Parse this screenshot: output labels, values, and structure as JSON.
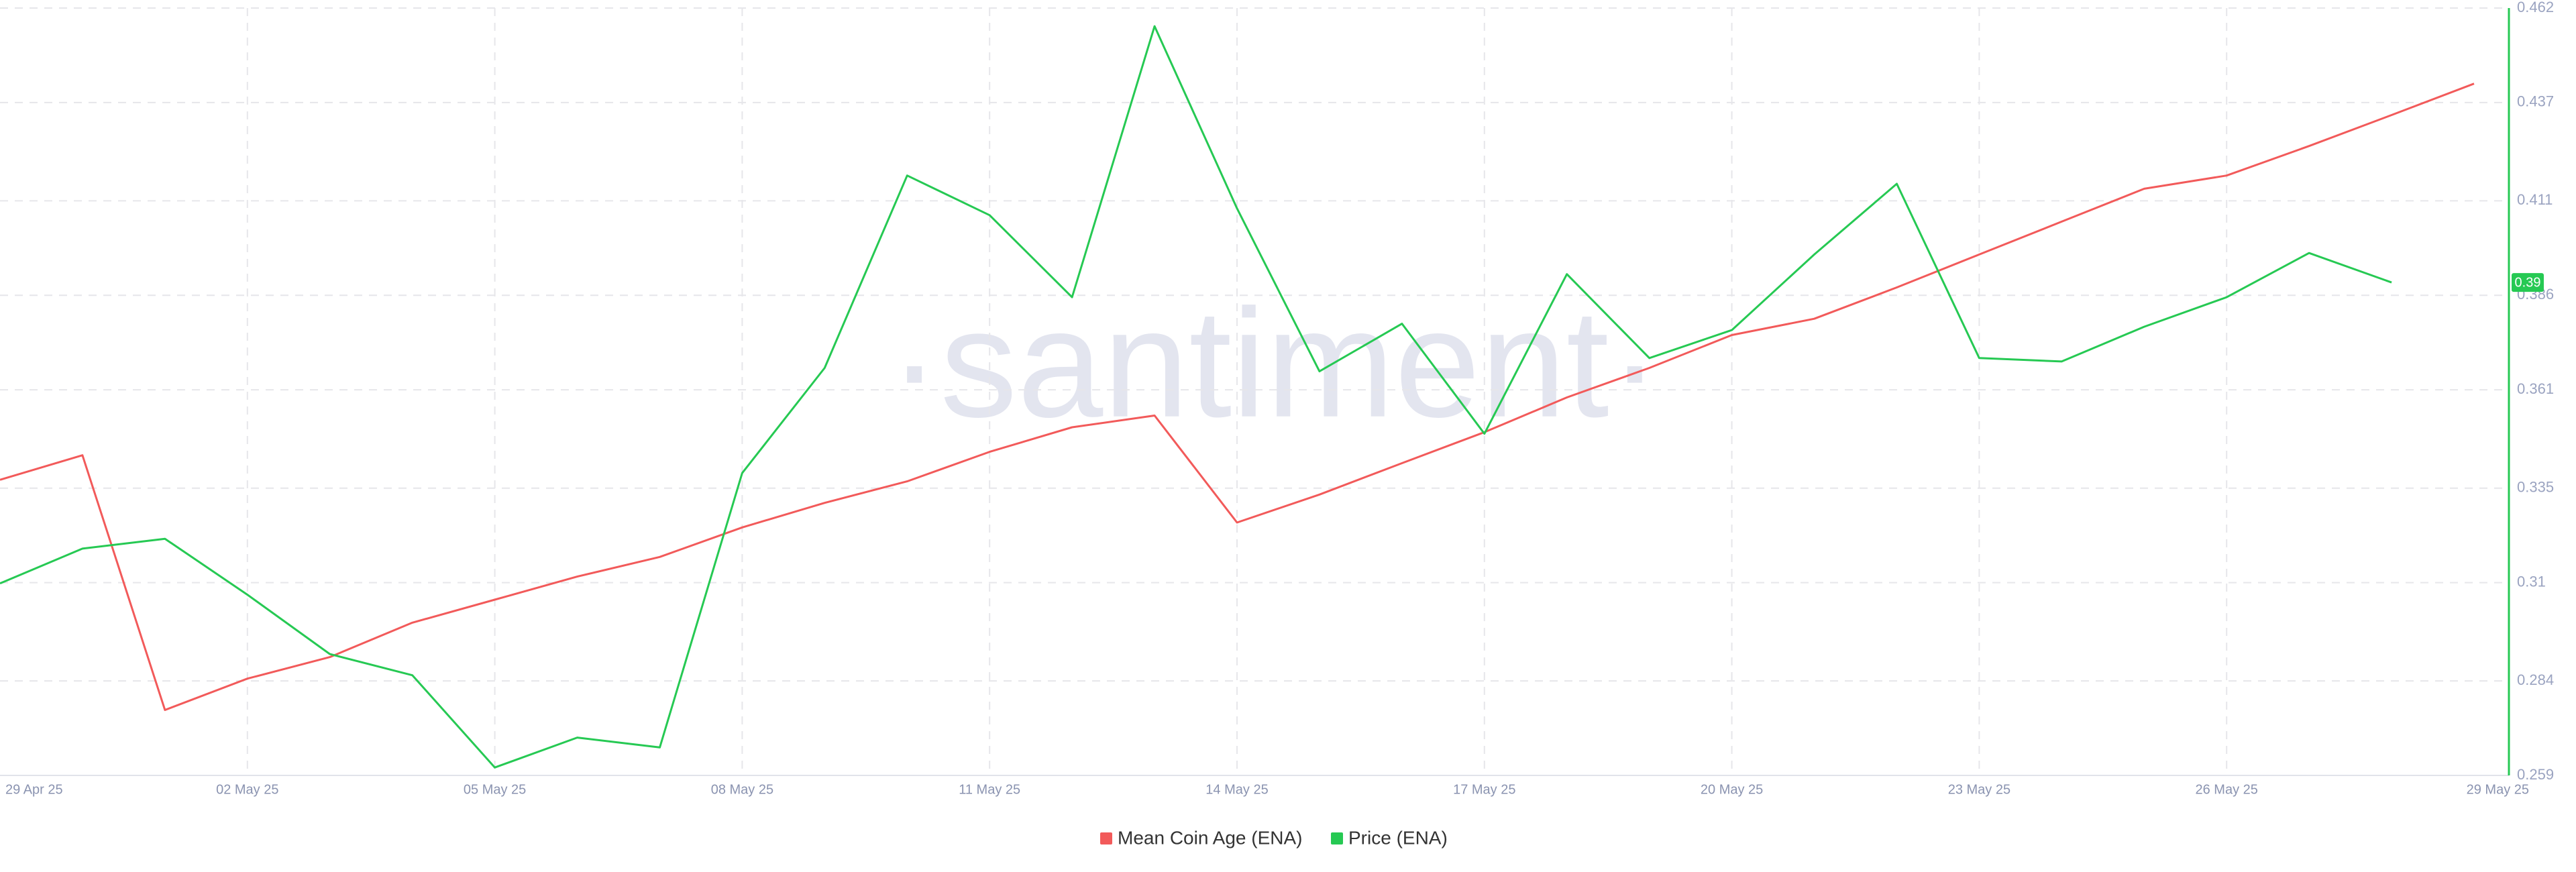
{
  "chart_data": {
    "type": "line",
    "watermark": "·santiment·",
    "categories": [
      "29 Apr 25",
      null,
      null,
      "02 May 25",
      null,
      null,
      "05 May 25",
      null,
      null,
      "08 May 25",
      null,
      null,
      "11 May 25",
      null,
      null,
      "14 May 25",
      null,
      null,
      "17 May 25",
      null,
      null,
      "20 May 25",
      null,
      null,
      "23 May 25",
      null,
      null,
      "26 May 25",
      null,
      null,
      "29 May 25"
    ],
    "series": [
      {
        "name": "Mean Coin Age (ENA)",
        "color": "#f25a5a",
        "values": [
          0.3372,
          0.3437,
          0.2763,
          0.2846,
          0.2903,
          0.2994,
          0.3055,
          0.3116,
          0.3168,
          0.3246,
          0.3311,
          0.3368,
          0.3446,
          0.3511,
          0.3542,
          0.3259,
          0.3333,
          0.3416,
          0.3498,
          0.359,
          0.3668,
          0.3755,
          0.3798,
          0.3881,
          0.3968,
          0.4055,
          0.4142,
          0.4177,
          0.4255,
          0.4337,
          0.442
        ]
      },
      {
        "name": "Price (ENA)",
        "color": "#26c953",
        "axis": "y2",
        "values": [
          0.3098,
          0.319,
          0.3216,
          0.3068,
          0.2911,
          0.2855,
          0.2611,
          0.269,
          0.2664,
          0.339,
          0.3668,
          0.4177,
          0.4072,
          0.3855,
          0.4572,
          0.409,
          0.3659,
          0.3785,
          0.3494,
          0.3916,
          0.3694,
          0.3768,
          0.3968,
          0.4155,
          0.3694,
          0.3685,
          0.3777,
          0.3855,
          0.3972,
          0.3894,
          null
        ],
        "value_labels": [
          null,
          null,
          null,
          null,
          null,
          null,
          null,
          null,
          null,
          null,
          null,
          null,
          null,
          null,
          null,
          null,
          null,
          null,
          null,
          null,
          null,
          null,
          null,
          null,
          null,
          null,
          null,
          null,
          null,
          "0.39",
          null
        ]
      }
    ],
    "y2lim": [
      0.259,
      0.462
    ],
    "y2ticks": [
      0.259,
      0.284,
      0.31,
      0.335,
      0.361,
      0.386,
      0.411,
      0.437,
      0.462
    ],
    "grid": true,
    "legend": "bottom"
  }
}
